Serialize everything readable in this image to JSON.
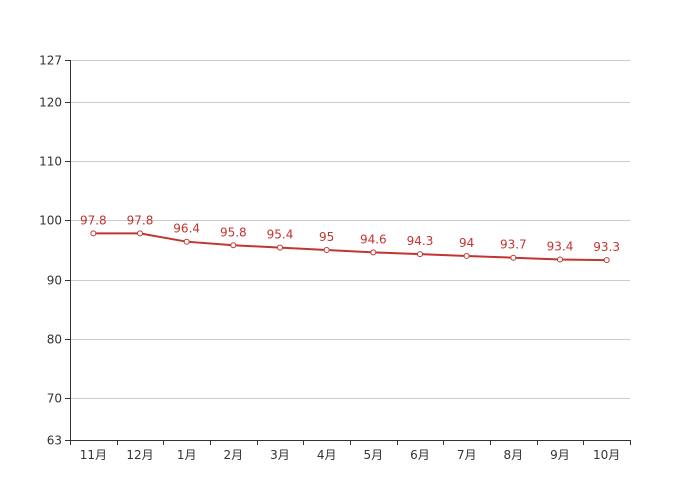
{
  "chart_data": {
    "type": "line",
    "categories": [
      "11月",
      "12月",
      "1月",
      "2月",
      "3月",
      "4月",
      "5月",
      "6月",
      "7月",
      "8月",
      "9月",
      "10月"
    ],
    "series": [
      {
        "values": [
          97.8,
          97.8,
          96.4,
          95.8,
          95.4,
          95,
          94.6,
          94.3,
          94,
          93.7,
          93.4,
          93.3
        ]
      }
    ],
    "value_labels": [
      "97.8",
      "97.8",
      "96.4",
      "95.8",
      "95.4",
      "95",
      "94.6",
      "94.3",
      "94",
      "93.7",
      "93.4",
      "93.3"
    ],
    "y_ticks": [
      63,
      70,
      80,
      90,
      100,
      110,
      120,
      127
    ],
    "y_tick_labels": [
      "63",
      "70",
      "80",
      "90",
      "100",
      "110",
      "120",
      "127"
    ],
    "ylim": [
      63,
      127
    ],
    "grid": true,
    "legend": "none",
    "title": "",
    "xlabel": "",
    "ylabel": "",
    "colors": {
      "line": "#c23531",
      "grid": "#cccccc",
      "axis": "#333333"
    }
  }
}
